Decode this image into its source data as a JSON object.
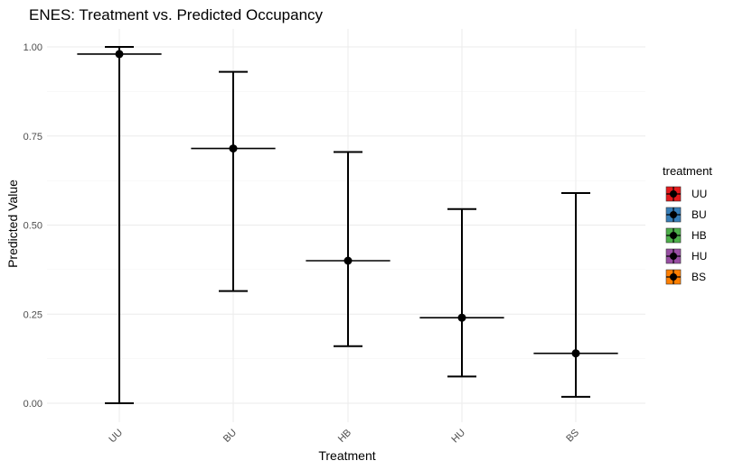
{
  "chart_data": {
    "type": "errorbar-point",
    "title": "ENES: Treatment vs. Predicted Occupancy",
    "xlabel": "Treatment",
    "ylabel": "Predicted Value",
    "categories": [
      "UU",
      "BU",
      "HB",
      "HU",
      "BS"
    ],
    "values": [
      0.98,
      0.715,
      0.4,
      0.24,
      0.14
    ],
    "lower": [
      0.0,
      0.315,
      0.16,
      0.075,
      0.018
    ],
    "upper": [
      1.0,
      0.93,
      0.705,
      0.545,
      0.59
    ],
    "ylim": [
      0,
      1.0
    ],
    "yticks": [
      "0.00",
      "0.25",
      "0.50",
      "0.75",
      "1.00"
    ],
    "ytick_values": [
      0,
      0.25,
      0.5,
      0.75,
      1.0
    ],
    "grid": true,
    "legend": {
      "title": "treatment",
      "position": "right",
      "entries": [
        {
          "label": "UU",
          "color": "#e41a1c"
        },
        {
          "label": "BU",
          "color": "#377eb8"
        },
        {
          "label": "HB",
          "color": "#4daf4a"
        },
        {
          "label": "HU",
          "color": "#984ea3"
        },
        {
          "label": "BS",
          "color": "#ff7f00"
        }
      ]
    }
  }
}
